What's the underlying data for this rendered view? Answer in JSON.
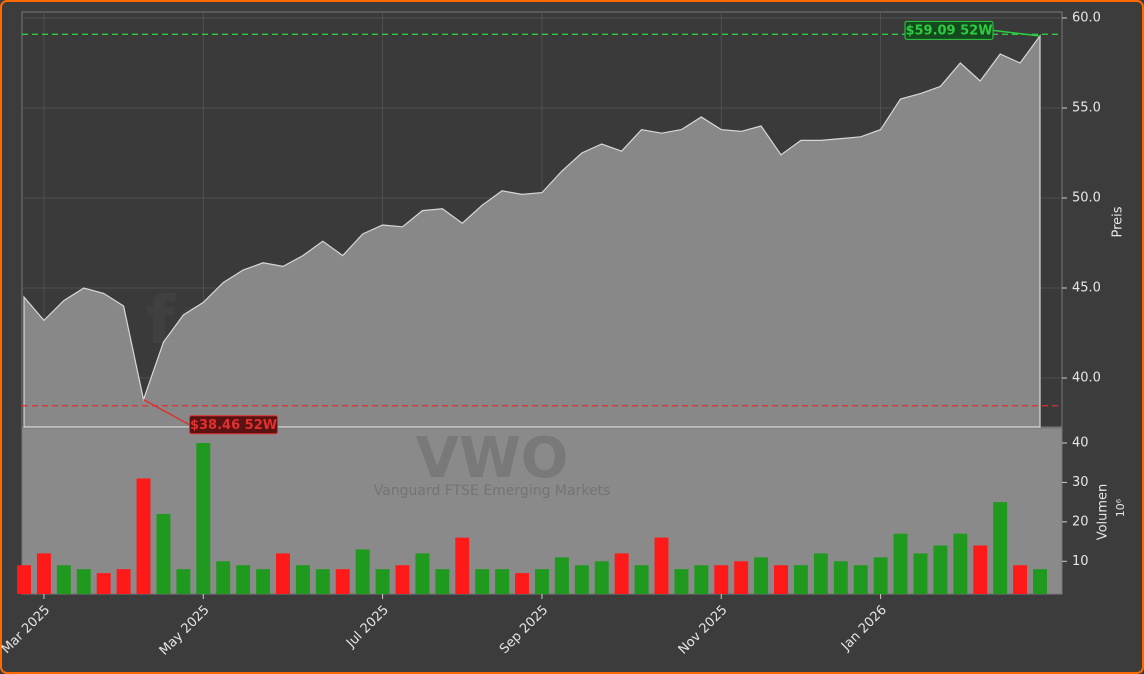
{
  "watermark": {
    "site": "forexsignale.trade",
    "ticker": "VWO",
    "name": "Vanguard FTSE Emerging Markets"
  },
  "chart_data": [
    {
      "type": "area",
      "ylabel": "Preis",
      "color": "#888888",
      "line_color": "#d8d8d8",
      "values": [
        44.5,
        43.2,
        44.3,
        45.0,
        44.7,
        44.0,
        38.8,
        42.0,
        43.5,
        44.2,
        45.3,
        46.0,
        46.4,
        46.2,
        46.8,
        47.6,
        46.8,
        48.0,
        48.5,
        48.4,
        49.3,
        49.4,
        48.6,
        49.6,
        50.4,
        50.2,
        50.3,
        51.5,
        52.5,
        53.0,
        52.6,
        53.8,
        53.6,
        53.8,
        54.5,
        53.8,
        53.7,
        54.0,
        52.4,
        53.2,
        53.2,
        53.3,
        53.4,
        53.8,
        55.5,
        55.8,
        56.2,
        57.5,
        56.5,
        58.0,
        57.5,
        59.0
      ],
      "ylim": [
        37.28,
        60.33
      ],
      "yticks": [
        {
          "value": 40,
          "label": "40.0"
        },
        {
          "value": 45,
          "label": "45.0"
        },
        {
          "value": 50,
          "label": "50.0"
        },
        {
          "value": 55,
          "label": "55.0"
        },
        {
          "value": 60,
          "label": "60.0"
        }
      ],
      "grid": true,
      "hlines": [
        {
          "value": 59.09,
          "color": "#2ecc40",
          "label": "$59.09 52W",
          "point": 51
        },
        {
          "value": 38.46,
          "color": "#e03030",
          "label": "$38.46 52W",
          "point": 6
        }
      ]
    },
    {
      "type": "bar",
      "ylabel": "Volumen",
      "yunit": "10⁶",
      "categories": [
        null,
        "Mar 2025",
        null,
        null,
        null,
        null,
        null,
        null,
        null,
        "May 2025",
        null,
        null,
        null,
        null,
        null,
        null,
        null,
        null,
        "Jul 2025",
        null,
        null,
        null,
        null,
        null,
        null,
        null,
        "Sep 2025",
        null,
        null,
        null,
        null,
        null,
        null,
        null,
        null,
        "Nov 2025",
        null,
        null,
        null,
        null,
        null,
        null,
        null,
        "Jan 2026",
        null,
        null,
        null,
        null,
        null,
        null,
        null,
        null
      ],
      "values": [
        9,
        12,
        9,
        8,
        7,
        8,
        31,
        22,
        8,
        40,
        10,
        9,
        8,
        12,
        9,
        8,
        8,
        13,
        8,
        9,
        12,
        8,
        16,
        8,
        8,
        7,
        8,
        11,
        9,
        10,
        12,
        9,
        16,
        8,
        9,
        9,
        10,
        11,
        9,
        9,
        12,
        10,
        9,
        11,
        17,
        12,
        14,
        17,
        14,
        25,
        9,
        8
      ],
      "colors": [
        "#ff1a1a",
        "#ff1a1a",
        "#1f9a1f",
        "#1f9a1f",
        "#ff1a1a",
        "#ff1a1a",
        "#ff1a1a",
        "#1f9a1f",
        "#1f9a1f",
        "#1f9a1f",
        "#1f9a1f",
        "#1f9a1f",
        "#1f9a1f",
        "#ff1a1a",
        "#1f9a1f",
        "#1f9a1f",
        "#ff1a1a",
        "#1f9a1f",
        "#1f9a1f",
        "#ff1a1a",
        "#1f9a1f",
        "#1f9a1f",
        "#ff1a1a",
        "#1f9a1f",
        "#1f9a1f",
        "#ff1a1a",
        "#1f9a1f",
        "#1f9a1f",
        "#1f9a1f",
        "#1f9a1f",
        "#ff1a1a",
        "#1f9a1f",
        "#ff1a1a",
        "#1f9a1f",
        "#1f9a1f",
        "#ff1a1a",
        "#ff1a1a",
        "#1f9a1f",
        "#ff1a1a",
        "#1f9a1f",
        "#1f9a1f",
        "#1f9a1f",
        "#1f9a1f",
        "#1f9a1f",
        "#1f9a1f",
        "#1f9a1f",
        "#1f9a1f",
        "#1f9a1f",
        "#ff1a1a",
        "#1f9a1f",
        "#ff1a1a",
        "#1f9a1f"
      ],
      "ylim": [
        1.7,
        43.8
      ],
      "yticks": [
        10,
        20,
        30,
        40
      ]
    }
  ]
}
